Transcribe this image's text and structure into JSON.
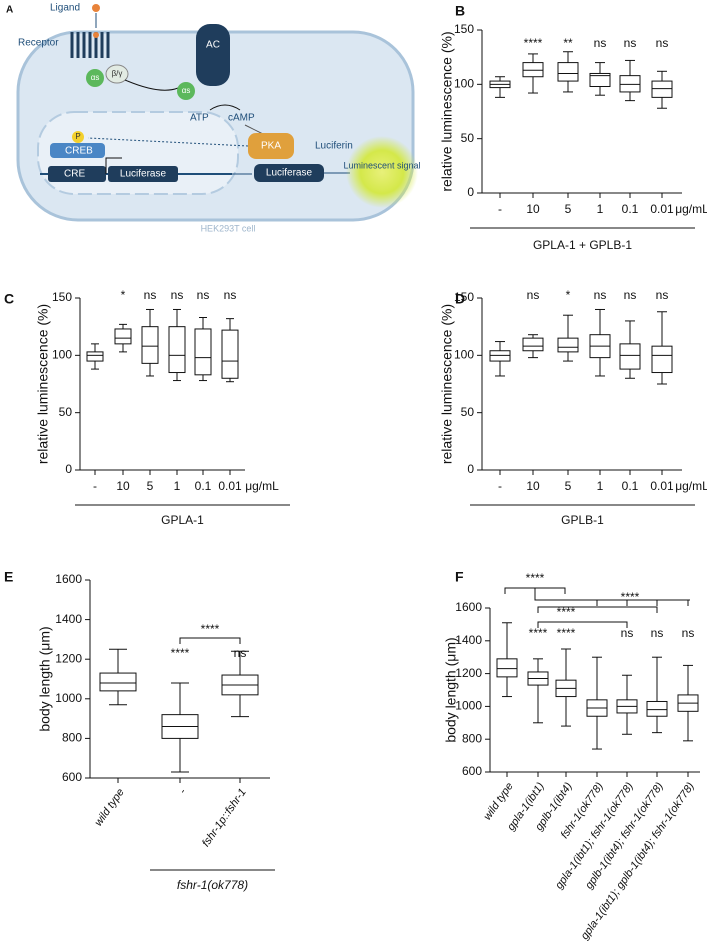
{
  "diagram": {
    "panel": "A",
    "ligand": "Ligand",
    "receptor": "Receptor",
    "alpha_1": "αs",
    "beta_gamma": "β/γ",
    "ac": "AC",
    "alpha_2": "αs",
    "atp": "ATP",
    "camp": "cAMP",
    "pka": "PKA",
    "p": "P",
    "creb": "CREB",
    "cre": "CRE",
    "luciferase_gene": "Luciferase",
    "luciferase_protein": "Luciferase",
    "luciferin": "Luciferin",
    "signal": "Luminescent signal",
    "cell": "HEK293T cell"
  },
  "chart_data": [
    {
      "type": "box",
      "panel": "B",
      "ylabel": "relative luminescence (%)",
      "categories": [
        "-",
        "10",
        "5",
        "1",
        "0.1",
        "0.01"
      ],
      "x_unit": "μg/mL",
      "group_label": "GPLA-1 + GPLB-1",
      "boxes": [
        {
          "min": 88,
          "q1": 97,
          "median": 100,
          "q3": 103,
          "max": 107
        },
        {
          "min": 92,
          "q1": 107,
          "median": 113,
          "q3": 120,
          "max": 128
        },
        {
          "min": 93,
          "q1": 103,
          "median": 110,
          "q3": 120,
          "max": 130
        },
        {
          "min": 90,
          "q1": 98,
          "median": 108,
          "q3": 110,
          "max": 120
        },
        {
          "min": 85,
          "q1": 93,
          "median": 100,
          "q3": 108,
          "max": 122
        },
        {
          "min": 78,
          "q1": 88,
          "median": 96,
          "q3": 103,
          "max": 112
        }
      ],
      "significance": [
        null,
        "****",
        "**",
        "ns",
        "ns",
        "ns"
      ],
      "ylim": [
        0,
        150
      ],
      "yticks": [
        0,
        50,
        100,
        150
      ]
    },
    {
      "type": "box",
      "panel": "C",
      "ylabel": "relative luminescence (%)",
      "categories": [
        "-",
        "10",
        "5",
        "1",
        "0.1",
        "0.01"
      ],
      "x_unit": "μg/mL",
      "group_label": "GPLA-1",
      "boxes": [
        {
          "min": 88,
          "q1": 95,
          "median": 100,
          "q3": 103,
          "max": 110
        },
        {
          "min": 103,
          "q1": 110,
          "median": 115,
          "q3": 123,
          "max": 127
        },
        {
          "min": 82,
          "q1": 93,
          "median": 108,
          "q3": 125,
          "max": 140
        },
        {
          "min": 78,
          "q1": 85,
          "median": 100,
          "q3": 125,
          "max": 140
        },
        {
          "min": 78,
          "q1": 83,
          "median": 98,
          "q3": 123,
          "max": 133
        },
        {
          "min": 77,
          "q1": 80,
          "median": 95,
          "q3": 122,
          "max": 132
        }
      ],
      "significance": [
        null,
        "*",
        "ns",
        "ns",
        "ns",
        "ns"
      ],
      "ylim": [
        0,
        150
      ],
      "yticks": [
        0,
        50,
        100,
        150
      ]
    },
    {
      "type": "box",
      "panel": "D",
      "ylabel": "relative luminescence (%)",
      "categories": [
        "-",
        "10",
        "5",
        "1",
        "0.1",
        "0.01"
      ],
      "x_unit": "μg/mL",
      "group_label": "GPLB-1",
      "boxes": [
        {
          "min": 82,
          "q1": 95,
          "median": 100,
          "q3": 104,
          "max": 112
        },
        {
          "min": 98,
          "q1": 104,
          "median": 108,
          "q3": 115,
          "max": 118
        },
        {
          "min": 95,
          "q1": 103,
          "median": 107,
          "q3": 115,
          "max": 135
        },
        {
          "min": 82,
          "q1": 98,
          "median": 108,
          "q3": 118,
          "max": 140
        },
        {
          "min": 80,
          "q1": 88,
          "median": 100,
          "q3": 110,
          "max": 130
        },
        {
          "min": 75,
          "q1": 85,
          "median": 100,
          "q3": 108,
          "max": 138
        }
      ],
      "significance": [
        null,
        "ns",
        "*",
        "ns",
        "ns",
        "ns"
      ],
      "ylim": [
        0,
        150
      ],
      "yticks": [
        0,
        50,
        100,
        150
      ]
    },
    {
      "type": "box",
      "panel": "E",
      "ylabel": "body length (μm)",
      "categories": [
        "wild type",
        "-",
        "fshr-1p::fshr-1"
      ],
      "group_label": "fshr-1(ok778)",
      "boxes": [
        {
          "min": 970,
          "q1": 1040,
          "median": 1080,
          "q3": 1130,
          "max": 1250
        },
        {
          "min": 630,
          "q1": 800,
          "median": 860,
          "q3": 920,
          "max": 1080
        },
        {
          "min": 910,
          "q1": 1020,
          "median": 1070,
          "q3": 1120,
          "max": 1240
        }
      ],
      "significance": [
        null,
        "****",
        "ns"
      ],
      "bracket_labels": [
        "****"
      ],
      "ylim": [
        600,
        1600
      ],
      "yticks": [
        600,
        800,
        1000,
        1200,
        1400,
        1600
      ]
    },
    {
      "type": "box",
      "panel": "F",
      "ylabel": "body length (μm)",
      "categories": [
        "wild type",
        "gpla-1(ibt1)",
        "gplb-1(ibt4)",
        "fshr-1(ok778)",
        "gpla-1(ibt1); fshr-1(ok778)",
        "gplb-1(ibt4); fshr-1(ok778)",
        "gpla-1(ibt1); gplb-1(ibt4); fshr-1(ok778)"
      ],
      "boxes": [
        {
          "min": 1060,
          "q1": 1180,
          "median": 1230,
          "q3": 1290,
          "max": 1510
        },
        {
          "min": 900,
          "q1": 1130,
          "median": 1170,
          "q3": 1210,
          "max": 1290
        },
        {
          "min": 880,
          "q1": 1060,
          "median": 1110,
          "q3": 1160,
          "max": 1350
        },
        {
          "min": 740,
          "q1": 940,
          "median": 990,
          "q3": 1040,
          "max": 1300
        },
        {
          "min": 830,
          "q1": 960,
          "median": 1000,
          "q3": 1040,
          "max": 1190
        },
        {
          "min": 840,
          "q1": 940,
          "median": 980,
          "q3": 1030,
          "max": 1300
        },
        {
          "min": 790,
          "q1": 970,
          "median": 1020,
          "q3": 1070,
          "max": 1250
        }
      ],
      "significance": [
        null,
        "****",
        "****",
        null,
        "ns",
        "ns",
        "ns"
      ],
      "bracket_labels": [
        "****",
        "****",
        "****"
      ],
      "ylim": [
        600,
        1600
      ],
      "yticks": [
        600,
        800,
        1000,
        1200,
        1400,
        1600
      ]
    }
  ]
}
